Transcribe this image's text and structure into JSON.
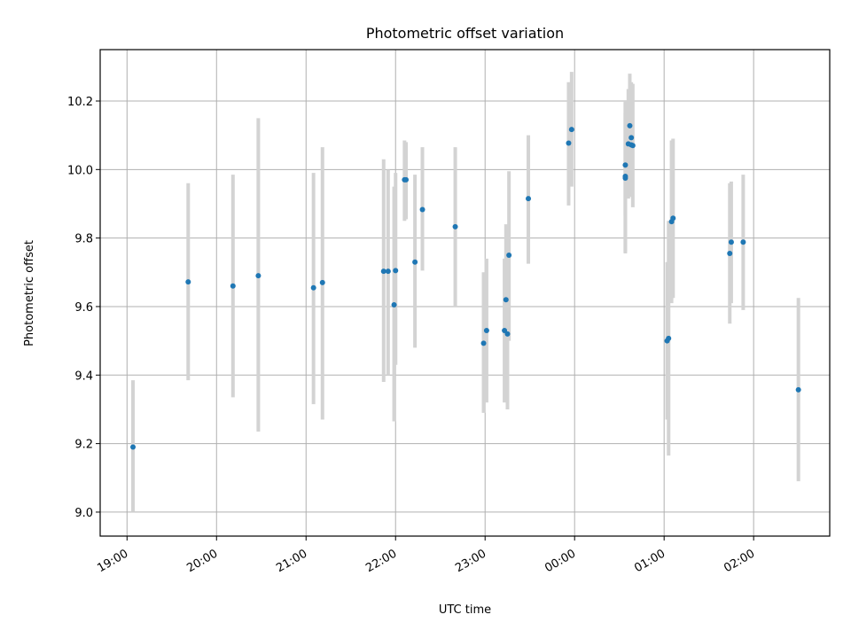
{
  "chart_data": {
    "type": "scatter",
    "title": "Photometric offset variation",
    "xlabel": "UTC time",
    "ylabel": "Photometric offset",
    "xlim": [
      "18:42",
      "02:51"
    ],
    "ylim": [
      8.93,
      10.35
    ],
    "grid": true,
    "x_ticks": [
      "19:00",
      "20:00",
      "21:00",
      "22:00",
      "23:00",
      "00:00",
      "01:00",
      "02:00"
    ],
    "y_ticks": [
      "9.0",
      "9.2",
      "9.4",
      "9.6",
      "9.8",
      "10.0",
      "10.2"
    ],
    "colors": {
      "point": "#1f77b4",
      "errorbar": "#d3d3d3",
      "grid": "#b0b0b0"
    },
    "points": [
      {
        "t": "19:04",
        "y": 9.19,
        "lo": 9.0,
        "hi": 9.385
      },
      {
        "t": "19:41",
        "y": 9.672,
        "lo": 9.385,
        "hi": 9.96
      },
      {
        "t": "20:11",
        "y": 9.66,
        "lo": 9.335,
        "hi": 9.985
      },
      {
        "t": "20:28",
        "y": 9.69,
        "lo": 9.235,
        "hi": 10.15
      },
      {
        "t": "21:05",
        "y": 9.655,
        "lo": 9.315,
        "hi": 9.99
      },
      {
        "t": "21:11",
        "y": 9.67,
        "lo": 9.27,
        "hi": 10.065
      },
      {
        "t": "21:52",
        "y": 9.703,
        "lo": 9.38,
        "hi": 10.03
      },
      {
        "t": "21:55",
        "y": 9.703,
        "lo": 9.4,
        "hi": 10.0
      },
      {
        "t": "21:59",
        "y": 9.605,
        "lo": 9.265,
        "hi": 9.95
      },
      {
        "t": "22:00",
        "y": 9.705,
        "lo": 9.43,
        "hi": 9.99
      },
      {
        "t": "22:06",
        "y": 9.97,
        "lo": 9.85,
        "hi": 10.085
      },
      {
        "t": "22:07",
        "y": 9.97,
        "lo": 9.855,
        "hi": 10.08
      },
      {
        "t": "22:13",
        "y": 9.73,
        "lo": 9.48,
        "hi": 9.985
      },
      {
        "t": "22:18",
        "y": 9.883,
        "lo": 9.705,
        "hi": 10.065
      },
      {
        "t": "22:40",
        "y": 9.833,
        "lo": 9.6,
        "hi": 10.065
      },
      {
        "t": "22:59",
        "y": 9.493,
        "lo": 9.29,
        "hi": 9.7
      },
      {
        "t": "23:01",
        "y": 9.53,
        "lo": 9.32,
        "hi": 9.74
      },
      {
        "t": "23:13",
        "y": 9.53,
        "lo": 9.32,
        "hi": 9.74
      },
      {
        "t": "23:14",
        "y": 9.62,
        "lo": 9.4,
        "hi": 9.84
      },
      {
        "t": "23:15",
        "y": 9.52,
        "lo": 9.3,
        "hi": 9.74
      },
      {
        "t": "23:16",
        "y": 9.75,
        "lo": 9.5,
        "hi": 9.995
      },
      {
        "t": "23:29",
        "y": 9.915,
        "lo": 9.725,
        "hi": 10.1
      },
      {
        "t": "23:56",
        "y": 10.077,
        "lo": 9.895,
        "hi": 10.255
      },
      {
        "t": "23:58",
        "y": 10.117,
        "lo": 9.95,
        "hi": 10.285
      },
      {
        "t": "00:34",
        "y": 10.013,
        "lo": 9.865,
        "hi": 10.165
      },
      {
        "t": "00:34",
        "y": 9.975,
        "lo": 9.76,
        "hi": 10.195
      },
      {
        "t": "00:34",
        "y": 9.98,
        "lo": 9.755,
        "hi": 10.2
      },
      {
        "t": "00:36",
        "y": 10.075,
        "lo": 9.915,
        "hi": 10.235
      },
      {
        "t": "00:37",
        "y": 10.128,
        "lo": 9.975,
        "hi": 10.28
      },
      {
        "t": "00:38",
        "y": 10.093,
        "lo": 9.935,
        "hi": 10.255
      },
      {
        "t": "00:38",
        "y": 10.072,
        "lo": 9.92,
        "hi": 10.225
      },
      {
        "t": "00:39",
        "y": 10.07,
        "lo": 9.89,
        "hi": 10.25
      },
      {
        "t": "01:02",
        "y": 9.5,
        "lo": 9.27,
        "hi": 9.73
      },
      {
        "t": "01:03",
        "y": 9.507,
        "lo": 9.165,
        "hi": 9.85
      },
      {
        "t": "01:05",
        "y": 9.848,
        "lo": 9.61,
        "hi": 10.085
      },
      {
        "t": "01:06",
        "y": 9.858,
        "lo": 9.625,
        "hi": 10.09
      },
      {
        "t": "01:44",
        "y": 9.755,
        "lo": 9.55,
        "hi": 9.96
      },
      {
        "t": "01:45",
        "y": 9.788,
        "lo": 9.61,
        "hi": 9.965
      },
      {
        "t": "01:53",
        "y": 9.788,
        "lo": 9.59,
        "hi": 9.985
      },
      {
        "t": "02:30",
        "y": 9.357,
        "lo": 9.09,
        "hi": 9.625
      }
    ]
  }
}
